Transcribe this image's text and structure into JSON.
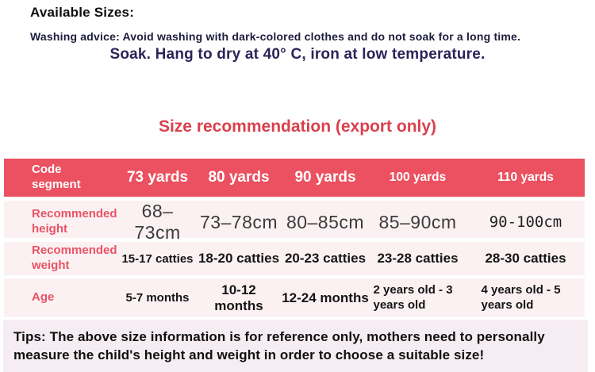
{
  "intro": {
    "available_sizes_label": "Available Sizes:",
    "washing_advice": "Washing advice: Avoid washing with dark-colored clothes and do not soak for a long time.",
    "care_instructions": "Soak. Hang to dry at 40° C, iron at low temperature.",
    "section_title": "Size recommendation (export only)"
  },
  "size_table": {
    "header": [
      "Code segment",
      "73 yards",
      "80 yards",
      "90 yards",
      "100 yards",
      "110 yards"
    ],
    "rows": [
      {
        "label": "Recommended height",
        "values": [
          "68–73cm",
          "73–78cm",
          "80–85cm",
          "85–90cm",
          "90-100cm"
        ]
      },
      {
        "label": "Recommended weight",
        "values": [
          "15-17 catties",
          "18-20 catties",
          "20-23 catties",
          "23-28 catties",
          "28-30 catties"
        ]
      },
      {
        "label": "Age",
        "values": [
          "5-7 months",
          "10-12 months",
          "12-24 months",
          "2 years old - 3 years old",
          "4 years old - 5 years old"
        ]
      }
    ]
  },
  "tips": "Tips: The above size information is for reference only, mothers need to personally measure the child's height and weight in order to choose a suitable size!",
  "colors": {
    "table_header_bg": "#eb5160",
    "table_header_text": "#ffffff",
    "row_bg": "#fcf1f2",
    "row_label_text": "#e85365",
    "section_title_text": "#d8414d",
    "care_text": "#2a2458",
    "tips_bg": "#f6edf2"
  }
}
